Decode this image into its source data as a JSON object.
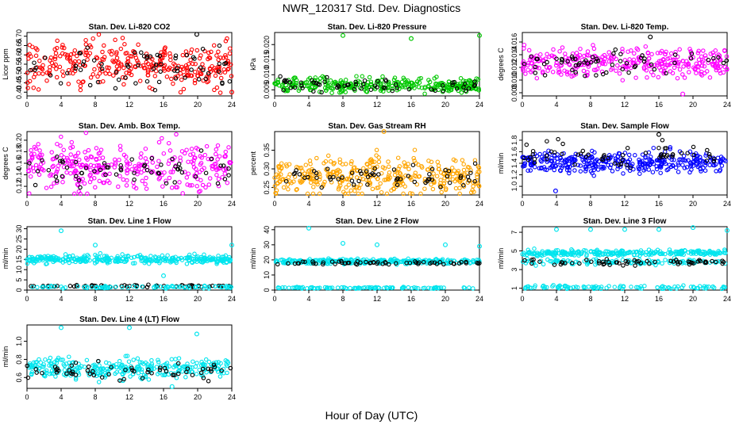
{
  "title": "NWR_120317 Std. Dev. Diagnostics",
  "xlabel": "Hour of Day (UTC)",
  "chart_data": [
    {
      "type": "scatter",
      "title": "Stan. Dev. Li-820 CO2",
      "ylabel": "Licor ppm",
      "xlim": [
        0,
        24
      ],
      "ylim": [
        0.38,
        0.72
      ],
      "xticks": [
        0,
        4,
        8,
        12,
        16,
        20,
        24
      ],
      "yticks": [
        0.4,
        0.45,
        0.5,
        0.55,
        0.6,
        0.65,
        0.7
      ],
      "series": [
        {
          "color": "#ff0000",
          "mean": 0.55,
          "spread": 0.06,
          "count": 320
        },
        {
          "color": "#000000",
          "mean": 0.54,
          "spread": 0.06,
          "count": 70
        }
      ],
      "outliers": [
        {
          "x": 19.9,
          "y": 0.71,
          "color": "#000000"
        },
        {
          "x": 24,
          "y": 0.4,
          "color": "#ff0000"
        }
      ]
    },
    {
      "type": "scatter",
      "title": "Stan. Dev. Li-820 Pressure",
      "ylabel": "kPa",
      "xlim": [
        0,
        24
      ],
      "ylim": [
        0.003,
        0.024
      ],
      "xticks": [
        0,
        4,
        8,
        12,
        16,
        20,
        24
      ],
      "yticks": [
        0.005,
        0.01,
        0.015,
        0.02
      ],
      "series": [
        {
          "color": "#00c800",
          "mean": 0.0065,
          "spread": 0.0012,
          "count": 320
        },
        {
          "color": "#000000",
          "mean": 0.0065,
          "spread": 0.0012,
          "count": 60
        }
      ],
      "outliers": [
        {
          "x": 8,
          "y": 0.023,
          "color": "#00c800"
        },
        {
          "x": 16,
          "y": 0.022,
          "color": "#00c800"
        },
        {
          "x": 24,
          "y": 0.023,
          "color": "#00c800"
        }
      ]
    },
    {
      "type": "scatter",
      "title": "Stan. Dev. Li-820 Temp.",
      "ylabel": "degrees C",
      "xlim": [
        0,
        24
      ],
      "ylim": [
        0.0075,
        0.0175
      ],
      "xticks": [
        0,
        4,
        8,
        12,
        16,
        20,
        24
      ],
      "yticks": [
        0.008,
        0.01,
        0.012,
        0.014,
        0.016
      ],
      "series": [
        {
          "color": "#ff00ff",
          "mean": 0.0128,
          "spread": 0.0012,
          "count": 320
        },
        {
          "color": "#000000",
          "mean": 0.0127,
          "spread": 0.001,
          "count": 60
        }
      ],
      "outliers": [
        {
          "x": 15,
          "y": 0.0168,
          "color": "#000000"
        },
        {
          "x": 18.8,
          "y": 0.0078,
          "color": "#ff00ff"
        }
      ]
    },
    {
      "type": "scatter",
      "title": "Stan. Dev. Amb. Box Temp.",
      "ylabel": "degrees C",
      "xlim": [
        0,
        24
      ],
      "ylim": [
        0.105,
        0.215
      ],
      "xticks": [
        0,
        4,
        8,
        12,
        16,
        20,
        24
      ],
      "yticks": [
        0.12,
        0.14,
        0.16,
        0.18,
        0.2
      ],
      "series": [
        {
          "color": "#ff00ff",
          "mean": 0.155,
          "spread": 0.02,
          "count": 320
        },
        {
          "color": "#000000",
          "mean": 0.145,
          "spread": 0.015,
          "count": 60
        }
      ],
      "outliers": []
    },
    {
      "type": "scatter",
      "title": "Stan. Dev. Gas Stream RH",
      "ylabel": "percent",
      "xlim": [
        0,
        24
      ],
      "ylim": [
        0.23,
        0.4
      ],
      "xticks": [
        0,
        4,
        8,
        12,
        16,
        20,
        24
      ],
      "yticks": [
        0.25,
        0.3,
        0.35
      ],
      "series": [
        {
          "color": "#ffa500",
          "mean": 0.28,
          "spread": 0.025,
          "count": 360
        },
        {
          "color": "#000000",
          "mean": 0.28,
          "spread": 0.015,
          "count": 60
        }
      ],
      "outliers": [
        {
          "x": 12.8,
          "y": 0.4,
          "color": "#ffa500"
        }
      ]
    },
    {
      "type": "scatter",
      "title": "Stan. Dev. Sample Flow",
      "ylabel": "ml/min",
      "xlim": [
        0,
        24
      ],
      "ylim": [
        0.85,
        1.95
      ],
      "xticks": [
        0,
        4,
        8,
        12,
        16,
        20,
        24
      ],
      "yticks": [
        1.0,
        1.2,
        1.4,
        1.6,
        1.8
      ],
      "series": [
        {
          "color": "#0000ff",
          "mean": 1.42,
          "spread": 0.09,
          "count": 340
        },
        {
          "color": "#000000",
          "mean": 1.55,
          "spread": 0.12,
          "count": 60
        }
      ],
      "outliers": [
        {
          "x": 3.9,
          "y": 0.92,
          "color": "#0000ff"
        },
        {
          "x": 16,
          "y": 1.9,
          "color": "#000000"
        }
      ]
    },
    {
      "type": "scatter",
      "title": "Stan. Dev. Line 1 Flow",
      "ylabel": "ml/min",
      "xlim": [
        0,
        24
      ],
      "ylim": [
        0,
        31
      ],
      "xticks": [
        0,
        4,
        8,
        12,
        16,
        20,
        24
      ],
      "yticks": [
        0,
        5,
        10,
        15,
        20,
        25,
        30
      ],
      "series": [
        {
          "color": "#00e5ee",
          "mean": 15,
          "spread": 1.0,
          "count": 320
        },
        {
          "color": "#000000",
          "mean": 2,
          "spread": 0.3,
          "count": 60
        },
        {
          "color": "#00e5ee",
          "mean": 1.5,
          "spread": 0.3,
          "count": 80
        }
      ],
      "outliers": [
        {
          "x": 4,
          "y": 29,
          "color": "#00e5ee"
        },
        {
          "x": 8,
          "y": 22,
          "color": "#00e5ee"
        },
        {
          "x": 24,
          "y": 22,
          "color": "#00e5ee"
        },
        {
          "x": 16,
          "y": 7,
          "color": "#00e5ee"
        }
      ]
    },
    {
      "type": "scatter",
      "title": "Stan. Dev. Line 2 Flow",
      "ylabel": "ml/min",
      "xlim": [
        0,
        24
      ],
      "ylim": [
        0,
        42
      ],
      "xticks": [
        0,
        4,
        8,
        12,
        16,
        20,
        24
      ],
      "yticks": [
        0,
        10,
        20,
        30,
        40
      ],
      "series": [
        {
          "color": "#00e5ee",
          "mean": 19,
          "spread": 0.8,
          "count": 280
        },
        {
          "color": "#000000",
          "mean": 18,
          "spread": 0.5,
          "count": 60
        },
        {
          "color": "#00e5ee",
          "mean": 1.5,
          "spread": 0.3,
          "count": 100
        }
      ],
      "outliers": [
        {
          "x": 4,
          "y": 41,
          "color": "#00e5ee"
        },
        {
          "x": 8,
          "y": 31,
          "color": "#00e5ee"
        },
        {
          "x": 12,
          "y": 30,
          "color": "#00e5ee"
        },
        {
          "x": 20,
          "y": 30,
          "color": "#00e5ee"
        },
        {
          "x": 24,
          "y": 29,
          "color": "#00e5ee"
        }
      ]
    },
    {
      "type": "scatter",
      "title": "Stan. Dev. Line 3 Flow",
      "ylabel": "ml/min",
      "xlim": [
        0,
        24
      ],
      "ylim": [
        0.8,
        7.6
      ],
      "xticks": [
        0,
        4,
        8,
        12,
        16,
        20,
        24
      ],
      "yticks": [
        1,
        3,
        5,
        7
      ],
      "series": [
        {
          "color": "#00e5ee",
          "mean": 4.8,
          "spread": 0.15,
          "count": 260
        },
        {
          "color": "#00e5ee",
          "mean": 3.8,
          "spread": 0.15,
          "count": 120
        },
        {
          "color": "#000000",
          "mean": 3.8,
          "spread": 0.15,
          "count": 60
        },
        {
          "color": "#00e5ee",
          "mean": 1.1,
          "spread": 0.1,
          "count": 100
        }
      ],
      "outliers": [
        {
          "x": 4,
          "y": 7.3,
          "color": "#00e5ee"
        },
        {
          "x": 8,
          "y": 7.3,
          "color": "#00e5ee"
        },
        {
          "x": 12,
          "y": 7.3,
          "color": "#00e5ee"
        },
        {
          "x": 16,
          "y": 7.3,
          "color": "#00e5ee"
        },
        {
          "x": 20,
          "y": 7.5,
          "color": "#00e5ee"
        },
        {
          "x": 24,
          "y": 7.2,
          "color": "#00e5ee"
        }
      ]
    },
    {
      "type": "scatter",
      "title": "Stan. Dev. Line 4 (LT) Flow",
      "ylabel": "ml/min",
      "xlim": [
        0,
        24
      ],
      "ylim": [
        0.48,
        1.18
      ],
      "xticks": [
        0,
        4,
        8,
        12,
        16,
        20,
        24
      ],
      "yticks": [
        0.6,
        0.8,
        1.0
      ],
      "series": [
        {
          "color": "#00e5ee",
          "mean": 0.7,
          "spread": 0.06,
          "count": 300
        },
        {
          "color": "#000000",
          "mean": 0.68,
          "spread": 0.05,
          "count": 60
        }
      ],
      "outliers": [
        {
          "x": 4,
          "y": 1.15,
          "color": "#00e5ee"
        },
        {
          "x": 12,
          "y": 1.15,
          "color": "#00e5ee"
        },
        {
          "x": 19.9,
          "y": 1.08,
          "color": "#00e5ee"
        },
        {
          "x": 17,
          "y": 0.5,
          "color": "#00e5ee"
        }
      ]
    }
  ]
}
